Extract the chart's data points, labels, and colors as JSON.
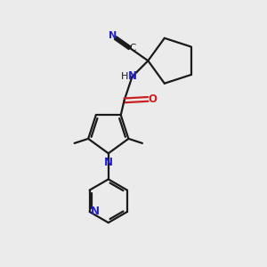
{
  "bg_color": "#ebebeb",
  "bond_color": "#1a1a1a",
  "n_color": "#2020cc",
  "o_color": "#cc2020",
  "c_color": "#2a6a6a",
  "line_width": 1.6,
  "figsize": [
    3.0,
    3.0
  ],
  "dpi": 100,
  "xlim": [
    0,
    10
  ],
  "ylim": [
    0,
    10
  ]
}
